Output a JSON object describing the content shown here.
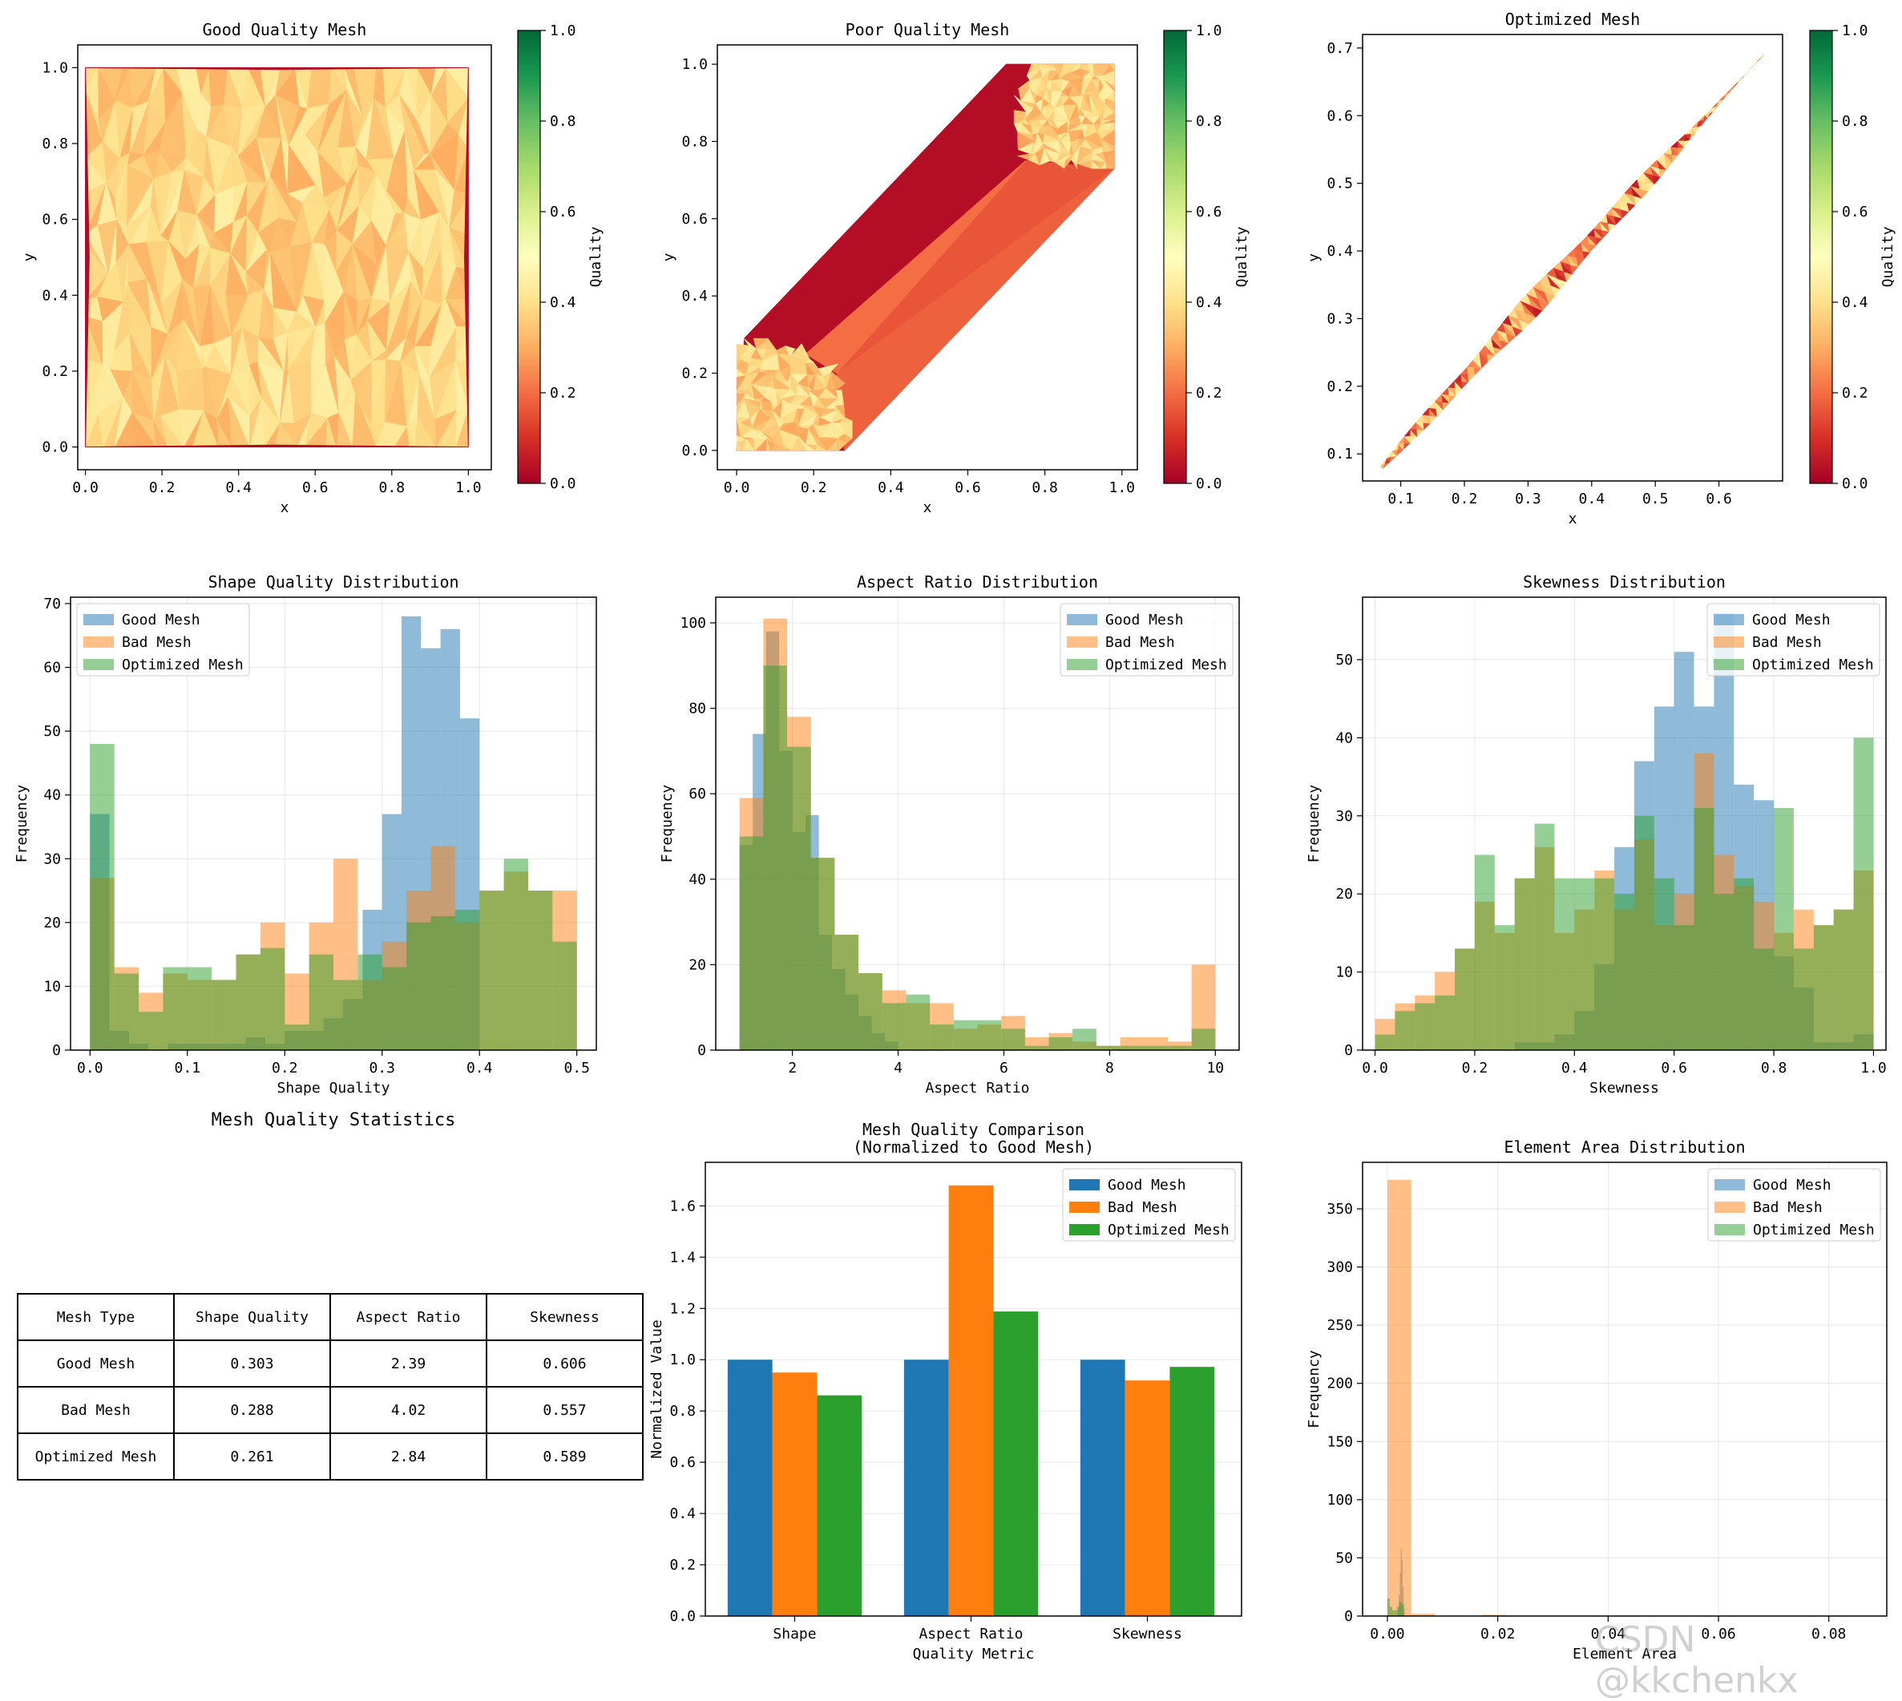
{
  "page": {
    "table_title": "Mesh Quality Statistics",
    "watermark": "CSDN @kkchenkx"
  },
  "colors": {
    "good": "#1f77b4",
    "bad": "#ff7f0e",
    "optimized": "#2ca02c",
    "colormap": [
      "#a50026",
      "#d73027",
      "#f46d43",
      "#fdae61",
      "#fee08b",
      "#ffffbf",
      "#d9ef8b",
      "#a6d96a",
      "#66bd63",
      "#1a9850",
      "#006837"
    ]
  },
  "chart_data": [
    {
      "id": "good-mesh",
      "type": "heatmap",
      "title": "Good Quality Mesh",
      "xlabel": "x",
      "ylabel": "y",
      "xlim": [
        -0.02,
        1.06
      ],
      "ylim": [
        -0.06,
        1.06
      ],
      "xticks": [
        0.0,
        0.2,
        0.4,
        0.6,
        0.8,
        1.0
      ],
      "yticks": [
        0.0,
        0.2,
        0.4,
        0.6,
        0.8,
        1.0
      ],
      "region": [
        [
          0,
          0
        ],
        [
          1,
          0
        ],
        [
          1,
          1
        ],
        [
          0,
          1
        ]
      ],
      "quality_range": [
        0.3,
        0.45
      ],
      "colorbar": {
        "label": "Quality",
        "range": [
          0,
          1
        ],
        "ticks": [
          0.0,
          0.2,
          0.4,
          0.6,
          0.8,
          1.0
        ]
      }
    },
    {
      "id": "poor-mesh",
      "type": "heatmap",
      "title": "Poor Quality Mesh",
      "xlabel": "x",
      "ylabel": "y",
      "xlim": [
        -0.05,
        1.04
      ],
      "ylim": [
        -0.05,
        1.05
      ],
      "xticks": [
        0.0,
        0.2,
        0.4,
        0.6,
        0.8,
        1.0
      ],
      "yticks": [
        0.0,
        0.2,
        0.4,
        0.6,
        0.8,
        1.0
      ],
      "hull": [
        [
          0,
          0
        ],
        [
          0.28,
          0
        ],
        [
          0.98,
          0.73
        ],
        [
          0.98,
          1.0
        ],
        [
          0.7,
          1.0
        ],
        [
          0.02,
          0.29
        ]
      ],
      "clusters": [
        {
          "region": [
            [
              0,
              0
            ],
            [
              0.28,
              0
            ],
            [
              0.3,
              0.05
            ],
            [
              0.26,
              0.2
            ],
            [
              0.18,
              0.25
            ],
            [
              0.05,
              0.29
            ],
            [
              0,
              0.25
            ]
          ],
          "quality_range": [
            0.28,
            0.45
          ]
        },
        {
          "region": [
            [
              0.75,
              0.75
            ],
            [
              0.98,
              0.73
            ],
            [
              0.98,
              1.0
            ],
            [
              0.76,
              1.0
            ],
            [
              0.72,
              0.85
            ]
          ],
          "quality_range": [
            0.28,
            0.45
          ]
        }
      ],
      "colorbar": {
        "label": "Quality",
        "range": [
          0,
          1
        ],
        "ticks": [
          0.0,
          0.2,
          0.4,
          0.6,
          0.8,
          1.0
        ]
      }
    },
    {
      "id": "optimized-mesh",
      "type": "heatmap",
      "title": "Optimized Mesh",
      "xlabel": "x",
      "ylabel": "y",
      "xlim": [
        0.04,
        0.7
      ],
      "ylim": [
        0.06,
        0.72
      ],
      "xticks": [
        0.1,
        0.2,
        0.3,
        0.4,
        0.5,
        0.6
      ],
      "yticks": [
        0.1,
        0.2,
        0.3,
        0.4,
        0.5,
        0.6,
        0.7
      ],
      "band": {
        "from": [
          0.07,
          0.08
        ],
        "to": [
          0.67,
          0.69
        ],
        "halfwidth": 0.014
      },
      "quality_range": [
        0.05,
        0.45
      ],
      "colorbar": {
        "label": "Quality",
        "range": [
          0,
          1
        ],
        "ticks": [
          0.0,
          0.2,
          0.4,
          0.6,
          0.8,
          1.0
        ]
      }
    },
    {
      "id": "shape-hist",
      "type": "bar",
      "title": "Shape Quality Distribution",
      "xlabel": "Shape Quality",
      "ylabel": "Frequency",
      "xlim": [
        -0.02,
        0.52
      ],
      "ylim": [
        0,
        71
      ],
      "xticks": [
        0.0,
        0.1,
        0.2,
        0.3,
        0.4,
        0.5
      ],
      "yticks": [
        0,
        10,
        20,
        30,
        40,
        50,
        60,
        70
      ],
      "legend": "upper left",
      "series": [
        {
          "name": "Good Mesh",
          "range": [
            0.0,
            0.4
          ],
          "counts": [
            37,
            3,
            1,
            0,
            1,
            1,
            1,
            1,
            2,
            1,
            3,
            3,
            5,
            8,
            22,
            37,
            68,
            63,
            66,
            52
          ]
        },
        {
          "name": "Bad Mesh",
          "range": [
            0.0,
            0.5
          ],
          "counts": [
            27,
            13,
            9,
            12,
            11,
            11,
            15,
            20,
            12,
            20,
            30,
            11,
            17,
            25,
            32,
            20,
            25,
            28,
            25,
            25
          ]
        },
        {
          "name": "Optimized Mesh",
          "range": [
            0.0,
            0.5
          ],
          "counts": [
            48,
            12,
            6,
            13,
            13,
            11,
            15,
            16,
            4,
            15,
            11,
            15,
            13,
            20,
            21,
            22,
            25,
            30,
            25,
            17
          ]
        }
      ]
    },
    {
      "id": "aspect-hist",
      "type": "bar",
      "title": "Aspect Ratio Distribution",
      "xlabel": "Aspect Ratio",
      "ylabel": "Frequency",
      "xlim": [
        0.55,
        10.45
      ],
      "ylim": [
        0,
        106
      ],
      "xticks": [
        2,
        4,
        6,
        8,
        10
      ],
      "yticks": [
        0,
        20,
        40,
        60,
        80,
        100
      ],
      "legend": "upper right",
      "series": [
        {
          "name": "Good Mesh",
          "range": [
            1.0,
            4.0
          ],
          "counts": [
            48,
            74,
            98,
            70,
            51,
            55,
            27,
            19,
            13,
            8,
            4,
            2
          ]
        },
        {
          "name": "Bad Mesh",
          "range": [
            1.0,
            10.0
          ],
          "counts": [
            59,
            101,
            78,
            45,
            27,
            18,
            14,
            11,
            11,
            5,
            6,
            8,
            3,
            4,
            2,
            1,
            3,
            3,
            2,
            20
          ]
        },
        {
          "name": "Optimized Mesh",
          "range": [
            1.0,
            10.0
          ],
          "counts": [
            50,
            90,
            71,
            45,
            27,
            18,
            11,
            13,
            6,
            7,
            7,
            5,
            1,
            3,
            5,
            1,
            1,
            1,
            1,
            5
          ]
        }
      ]
    },
    {
      "id": "skew-hist",
      "type": "bar",
      "title": "Skewness Distribution",
      "xlabel": "Skewness",
      "ylabel": "Frequency",
      "xlim": [
        -0.025,
        1.025
      ],
      "ylim": [
        0,
        58
      ],
      "xticks": [
        0.0,
        0.2,
        0.4,
        0.6,
        0.8,
        1.0
      ],
      "yticks": [
        0,
        10,
        20,
        30,
        40,
        50
      ],
      "legend": "upper right",
      "series": [
        {
          "name": "Good Mesh",
          "range": [
            0.0,
            1.0
          ],
          "counts": [
            0,
            0,
            0,
            0,
            0,
            0,
            0,
            1,
            1,
            2,
            5,
            11,
            26,
            37,
            44,
            51,
            44,
            56,
            34,
            32,
            12,
            8,
            1,
            1,
            2
          ]
        },
        {
          "name": "Bad Mesh",
          "range": [
            0.0,
            1.0
          ],
          "counts": [
            4,
            6,
            7,
            10,
            13,
            19,
            15,
            22,
            26,
            15,
            18,
            23,
            18,
            27,
            16,
            20,
            38,
            25,
            21,
            19,
            15,
            18,
            16,
            18,
            23
          ]
        },
        {
          "name": "Optimized Mesh",
          "range": [
            0.0,
            1.0
          ],
          "counts": [
            2,
            5,
            6,
            7,
            13,
            25,
            16,
            22,
            29,
            22,
            22,
            22,
            20,
            30,
            22,
            16,
            31,
            20,
            22,
            13,
            31,
            13,
            16,
            18,
            40
          ]
        }
      ]
    },
    {
      "id": "comparison",
      "type": "bar",
      "title": "Mesh Quality Comparison\n(Normalized to Good Mesh)",
      "xlabel": "Quality Metric",
      "ylabel": "Normalized Value",
      "categories": [
        "Shape",
        "Aspect Ratio",
        "Skewness"
      ],
      "ylim": [
        0,
        1.77
      ],
      "yticks": [
        0.0,
        0.2,
        0.4,
        0.6,
        0.8,
        1.0,
        1.2,
        1.4,
        1.6
      ],
      "legend": "upper right",
      "series": [
        {
          "name": "Good Mesh",
          "values": [
            1.0,
            1.0,
            1.0
          ]
        },
        {
          "name": "Bad Mesh",
          "values": [
            0.95,
            1.68,
            0.919
          ]
        },
        {
          "name": "Optimized Mesh",
          "values": [
            0.861,
            1.188,
            0.972
          ]
        }
      ]
    },
    {
      "id": "area-hist",
      "type": "bar",
      "title": "Element Area Distribution",
      "xlabel": "Element Area",
      "ylabel": "Frequency",
      "xlim": [
        -0.0045,
        0.0905
      ],
      "ylim": [
        0,
        390
      ],
      "xticks": [
        0.0,
        0.02,
        0.04,
        0.06,
        0.08
      ],
      "yticks": [
        0,
        50,
        100,
        150,
        200,
        250,
        300,
        350
      ],
      "legend": "upper right",
      "series": [
        {
          "name": "Good Mesh",
          "range": [
            0.0019,
            0.0031
          ],
          "counts": [
            6,
            18,
            37,
            58,
            48,
            25,
            6
          ]
        },
        {
          "name": "Bad Mesh",
          "range": [
            0.0,
            0.086
          ],
          "counts": [
            375,
            2,
            0,
            0,
            1,
            0,
            0,
            0,
            0,
            0,
            0,
            0,
            0,
            0,
            0,
            0,
            0,
            0,
            0,
            0
          ]
        },
        {
          "name": "Optimized Mesh",
          "range": [
            0.0,
            0.003
          ],
          "counts": [
            15,
            8,
            5,
            5,
            8,
            12,
            10
          ]
        }
      ]
    }
  ],
  "table": {
    "headers": [
      "Mesh Type",
      "Shape Quality",
      "Aspect Ratio",
      "Skewness"
    ],
    "rows": [
      [
        "Good Mesh",
        "0.303",
        "2.39",
        "0.606"
      ],
      [
        "Bad Mesh",
        "0.288",
        "4.02",
        "0.557"
      ],
      [
        "Optimized Mesh",
        "0.261",
        "2.84",
        "0.589"
      ]
    ]
  }
}
